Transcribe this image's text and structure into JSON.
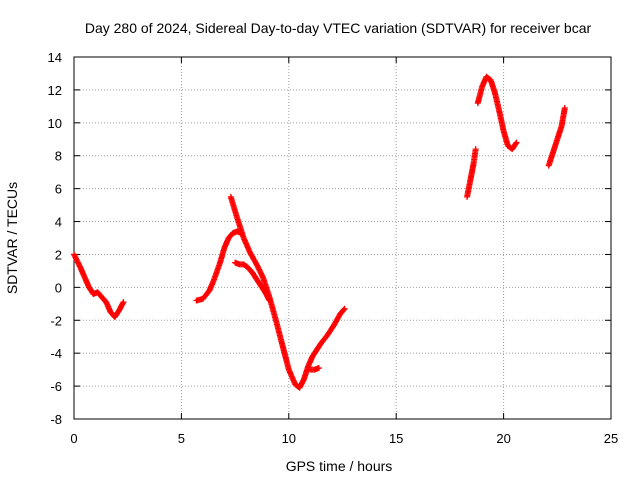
{
  "chart_data": {
    "type": "scatter",
    "title": "Day 280 of 2024, Sidereal Day-to-day VTEC variation (SDTVAR) for receiver bcar",
    "xlabel": "GPS time / hours",
    "ylabel": "SDTVAR / TECUs",
    "xlim": [
      0,
      25
    ],
    "ylim": [
      -8,
      14
    ],
    "x_ticks": [
      "0",
      "5",
      "10",
      "15",
      "20",
      "25"
    ],
    "y_ticks": [
      "14",
      "12",
      "10",
      "8",
      "6",
      "4",
      "2",
      "0",
      "-2",
      "-4",
      "-6",
      "-8"
    ],
    "grid": true,
    "legend": "none",
    "marker": "+",
    "color": "#ff0000",
    "series": [
      {
        "segments": [
          {
            "x": [
              0.0,
              0.3,
              0.5,
              0.7,
              0.9,
              1.1,
              1.3,
              1.5,
              1.7,
              1.9,
              2.1,
              2.3
            ],
            "y": [
              2.0,
              1.2,
              0.6,
              0.0,
              -0.4,
              -0.3,
              -0.6,
              -0.9,
              -1.5,
              -1.8,
              -1.4,
              -0.9
            ]
          },
          {
            "x": [
              5.7,
              6.0,
              6.3,
              6.5,
              6.8,
              7.0,
              7.2,
              7.4,
              7.6,
              7.8
            ],
            "y": [
              -0.8,
              -0.7,
              -0.2,
              0.4,
              1.5,
              2.4,
              3.0,
              3.3,
              3.4,
              3.3
            ]
          },
          {
            "x": [
              7.5,
              7.7,
              7.9,
              8.1,
              8.3,
              8.5,
              8.7,
              8.9,
              9.1
            ],
            "y": [
              1.5,
              1.4,
              1.4,
              1.2,
              0.9,
              0.5,
              0.1,
              -0.3,
              -0.8
            ]
          },
          {
            "x": [
              7.3,
              7.6,
              7.9,
              8.2,
              8.5,
              8.8,
              9.1,
              9.4,
              9.7,
              10.0,
              10.3,
              10.5,
              10.7,
              10.9,
              11.1,
              11.3,
              11.5,
              11.8,
              12.1,
              12.4,
              12.6
            ],
            "y": [
              5.5,
              4.2,
              3.0,
              2.1,
              1.4,
              0.6,
              -0.6,
              -2.0,
              -3.5,
              -5.0,
              -5.9,
              -6.1,
              -5.6,
              -4.8,
              -4.2,
              -3.8,
              -3.4,
              -2.9,
              -2.3,
              -1.6,
              -1.3
            ]
          },
          {
            "x": [
              11.0,
              11.2,
              11.4
            ],
            "y": [
              -5.0,
              -5.0,
              -4.9
            ]
          },
          {
            "x": [
              18.3,
              18.45,
              18.6,
              18.7
            ],
            "y": [
              5.5,
              6.5,
              7.5,
              8.4
            ]
          },
          {
            "x": [
              18.8,
              19.0,
              19.2,
              19.4,
              19.6,
              19.8,
              20.0,
              20.2,
              20.4,
              20.6
            ],
            "y": [
              11.2,
              12.2,
              12.8,
              12.6,
              11.8,
              10.7,
              9.5,
              8.6,
              8.4,
              8.8
            ]
          },
          {
            "x": [
              22.1,
              22.3,
              22.5,
              22.7,
              22.85
            ],
            "y": [
              7.4,
              8.2,
              9.0,
              9.8,
              10.9
            ]
          }
        ]
      }
    ]
  }
}
